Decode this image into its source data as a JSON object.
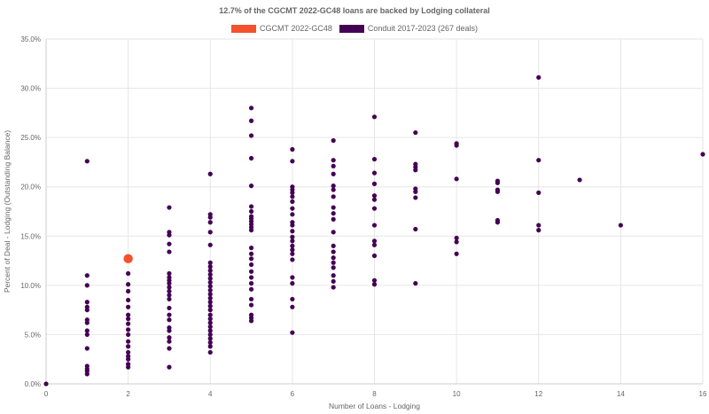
{
  "chart_data": {
    "type": "scatter",
    "title": "12.7% of the CGCMT 2022-GC48 loans are backed by Lodging collateral",
    "xlabel": "Number of Loans - Lodging",
    "ylabel": "Percent of Deal - Lodging (Outstanding Balance)",
    "xlim": [
      0,
      16
    ],
    "ylim": [
      0,
      35
    ],
    "x_ticks": [
      "0",
      "2",
      "4",
      "6",
      "8",
      "10",
      "12",
      "14",
      "16"
    ],
    "y_ticks": [
      "0.0%",
      "5.0%",
      "10.0%",
      "15.0%",
      "20.0%",
      "25.0%",
      "30.0%",
      "35.0%"
    ],
    "grid": true,
    "legend": "top-center",
    "series": [
      {
        "name": "CGCMT 2022-GC48",
        "color": "#F4512C",
        "points": [
          [
            2,
            12.7
          ]
        ]
      },
      {
        "name": "Conduit 2017-2023 (267 deals)",
        "color": "#440154",
        "points": [
          [
            0,
            0.0
          ],
          [
            1,
            22.6
          ],
          [
            1,
            11.0
          ],
          [
            1,
            10.0
          ],
          [
            1,
            8.3
          ],
          [
            1,
            7.8
          ],
          [
            1,
            7.5
          ],
          [
            1,
            6.5
          ],
          [
            1,
            6.2
          ],
          [
            1,
            5.4
          ],
          [
            1,
            5.0
          ],
          [
            1,
            3.6
          ],
          [
            1,
            1.8
          ],
          [
            1,
            1.5
          ],
          [
            1,
            1.3
          ],
          [
            1,
            1.0
          ],
          [
            2,
            11.2
          ],
          [
            2,
            10.1
          ],
          [
            2,
            9.4
          ],
          [
            2,
            8.5
          ],
          [
            2,
            7.8
          ],
          [
            2,
            7.0
          ],
          [
            2,
            6.6
          ],
          [
            2,
            6.1
          ],
          [
            2,
            5.5
          ],
          [
            2,
            5.0
          ],
          [
            2,
            4.3
          ],
          [
            2,
            3.8
          ],
          [
            2,
            3.2
          ],
          [
            2,
            2.8
          ],
          [
            2,
            2.5
          ],
          [
            2,
            2.0
          ],
          [
            2,
            1.7
          ],
          [
            3,
            17.9
          ],
          [
            3,
            15.4
          ],
          [
            3,
            15.1
          ],
          [
            3,
            14.2
          ],
          [
            3,
            13.4
          ],
          [
            3,
            11.2
          ],
          [
            3,
            10.8
          ],
          [
            3,
            10.5
          ],
          [
            3,
            10.2
          ],
          [
            3,
            9.8
          ],
          [
            3,
            9.4
          ],
          [
            3,
            9.0
          ],
          [
            3,
            8.6
          ],
          [
            3,
            7.7
          ],
          [
            3,
            7.0
          ],
          [
            3,
            6.5
          ],
          [
            3,
            5.7
          ],
          [
            3,
            5.4
          ],
          [
            3,
            4.7
          ],
          [
            3,
            4.3
          ],
          [
            3,
            3.6
          ],
          [
            3,
            1.7
          ],
          [
            4,
            21.3
          ],
          [
            4,
            17.2
          ],
          [
            4,
            16.9
          ],
          [
            4,
            16.4
          ],
          [
            4,
            15.4
          ],
          [
            4,
            14.1
          ],
          [
            4,
            12.3
          ],
          [
            4,
            11.9
          ],
          [
            4,
            11.5
          ],
          [
            4,
            11.1
          ],
          [
            4,
            10.7
          ],
          [
            4,
            10.3
          ],
          [
            4,
            9.9
          ],
          [
            4,
            9.5
          ],
          [
            4,
            9.1
          ],
          [
            4,
            8.7
          ],
          [
            4,
            8.3
          ],
          [
            4,
            7.9
          ],
          [
            4,
            7.5
          ],
          [
            4,
            7.0
          ],
          [
            4,
            6.6
          ],
          [
            4,
            6.2
          ],
          [
            4,
            5.8
          ],
          [
            4,
            5.4
          ],
          [
            4,
            5.0
          ],
          [
            4,
            4.6
          ],
          [
            4,
            4.2
          ],
          [
            4,
            3.8
          ],
          [
            4,
            3.2
          ],
          [
            5,
            28.0
          ],
          [
            5,
            26.7
          ],
          [
            5,
            25.2
          ],
          [
            5,
            22.9
          ],
          [
            5,
            20.1
          ],
          [
            5,
            18.0
          ],
          [
            5,
            17.5
          ],
          [
            5,
            17.0
          ],
          [
            5,
            16.8
          ],
          [
            5,
            16.5
          ],
          [
            5,
            16.2
          ],
          [
            5,
            15.9
          ],
          [
            5,
            15.6
          ],
          [
            5,
            13.8
          ],
          [
            5,
            13.2
          ],
          [
            5,
            12.7
          ],
          [
            5,
            12.1
          ],
          [
            5,
            11.4
          ],
          [
            5,
            10.8
          ],
          [
            5,
            10.2
          ],
          [
            5,
            9.6
          ],
          [
            5,
            8.6
          ],
          [
            5,
            8.0
          ],
          [
            5,
            7.0
          ],
          [
            5,
            6.7
          ],
          [
            5,
            6.4
          ],
          [
            6,
            23.8
          ],
          [
            6,
            22.6
          ],
          [
            6,
            20.0
          ],
          [
            6,
            19.7
          ],
          [
            6,
            19.4
          ],
          [
            6,
            19.0
          ],
          [
            6,
            18.5
          ],
          [
            6,
            17.8
          ],
          [
            6,
            17.2
          ],
          [
            6,
            16.4
          ],
          [
            6,
            16.1
          ],
          [
            6,
            15.5
          ],
          [
            6,
            14.9
          ],
          [
            6,
            14.5
          ],
          [
            6,
            14.0
          ],
          [
            6,
            13.6
          ],
          [
            6,
            13.2
          ],
          [
            6,
            12.6
          ],
          [
            6,
            10.8
          ],
          [
            6,
            10.2
          ],
          [
            6,
            8.6
          ],
          [
            6,
            7.8
          ],
          [
            6,
            5.2
          ],
          [
            7,
            24.7
          ],
          [
            7,
            22.7
          ],
          [
            7,
            22.1
          ],
          [
            7,
            21.3
          ],
          [
            7,
            20.1
          ],
          [
            7,
            19.7
          ],
          [
            7,
            19.0
          ],
          [
            7,
            17.9
          ],
          [
            7,
            17.3
          ],
          [
            7,
            16.7
          ],
          [
            7,
            15.4
          ],
          [
            7,
            14.0
          ],
          [
            7,
            13.4
          ],
          [
            7,
            12.8
          ],
          [
            7,
            12.3
          ],
          [
            7,
            11.8
          ],
          [
            7,
            11.0
          ],
          [
            7,
            10.4
          ],
          [
            7,
            9.8
          ],
          [
            8,
            27.1
          ],
          [
            8,
            22.8
          ],
          [
            8,
            21.4
          ],
          [
            8,
            20.3
          ],
          [
            8,
            19.1
          ],
          [
            8,
            18.7
          ],
          [
            8,
            17.8
          ],
          [
            8,
            16.1
          ],
          [
            8,
            14.5
          ],
          [
            8,
            14.1
          ],
          [
            8,
            13.0
          ],
          [
            8,
            10.5
          ],
          [
            8,
            10.1
          ],
          [
            9,
            25.5
          ],
          [
            9,
            22.3
          ],
          [
            9,
            22.0
          ],
          [
            9,
            21.7
          ],
          [
            9,
            19.8
          ],
          [
            9,
            19.5
          ],
          [
            9,
            18.9
          ],
          [
            9,
            15.7
          ],
          [
            9,
            10.2
          ],
          [
            10,
            24.4
          ],
          [
            10,
            24.2
          ],
          [
            10,
            20.8
          ],
          [
            10,
            14.8
          ],
          [
            10,
            14.4
          ],
          [
            10,
            13.2
          ],
          [
            11,
            20.6
          ],
          [
            11,
            20.4
          ],
          [
            11,
            19.7
          ],
          [
            11,
            19.5
          ],
          [
            11,
            16.6
          ],
          [
            11,
            16.4
          ],
          [
            12,
            31.1
          ],
          [
            12,
            22.7
          ],
          [
            12,
            19.4
          ],
          [
            12,
            16.1
          ],
          [
            12,
            15.6
          ],
          [
            13,
            20.7
          ],
          [
            14,
            16.1
          ],
          [
            16,
            23.3
          ]
        ]
      }
    ]
  }
}
